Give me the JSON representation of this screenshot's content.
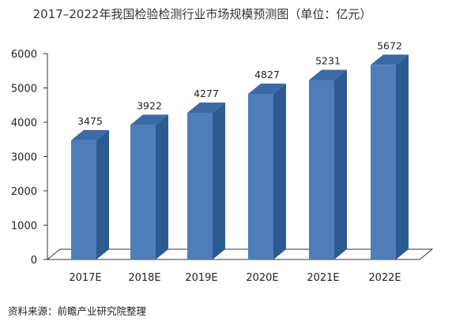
{
  "chart_data": {
    "type": "bar",
    "title": "2017–2022年我国检验检测行业市场规模预测图（单位：亿元）",
    "categories": [
      "2017E",
      "2018E",
      "2019E",
      "2020E",
      "2021E",
      "2022E"
    ],
    "values": [
      3475,
      3922,
      4277,
      4827,
      5231,
      5672
    ],
    "y_ticks": [
      0,
      1000,
      2000,
      3000,
      4000,
      5000,
      6000
    ],
    "ylim": [
      0,
      6000
    ],
    "xlabel": "",
    "ylabel": "",
    "grid": false,
    "style": "3d",
    "colors": {
      "front": "#4f7db9",
      "side": "#2e5a92",
      "top": "#3b6aa6",
      "label": "#222222"
    }
  },
  "source": "资料来源：前瞻产业研究院整理"
}
